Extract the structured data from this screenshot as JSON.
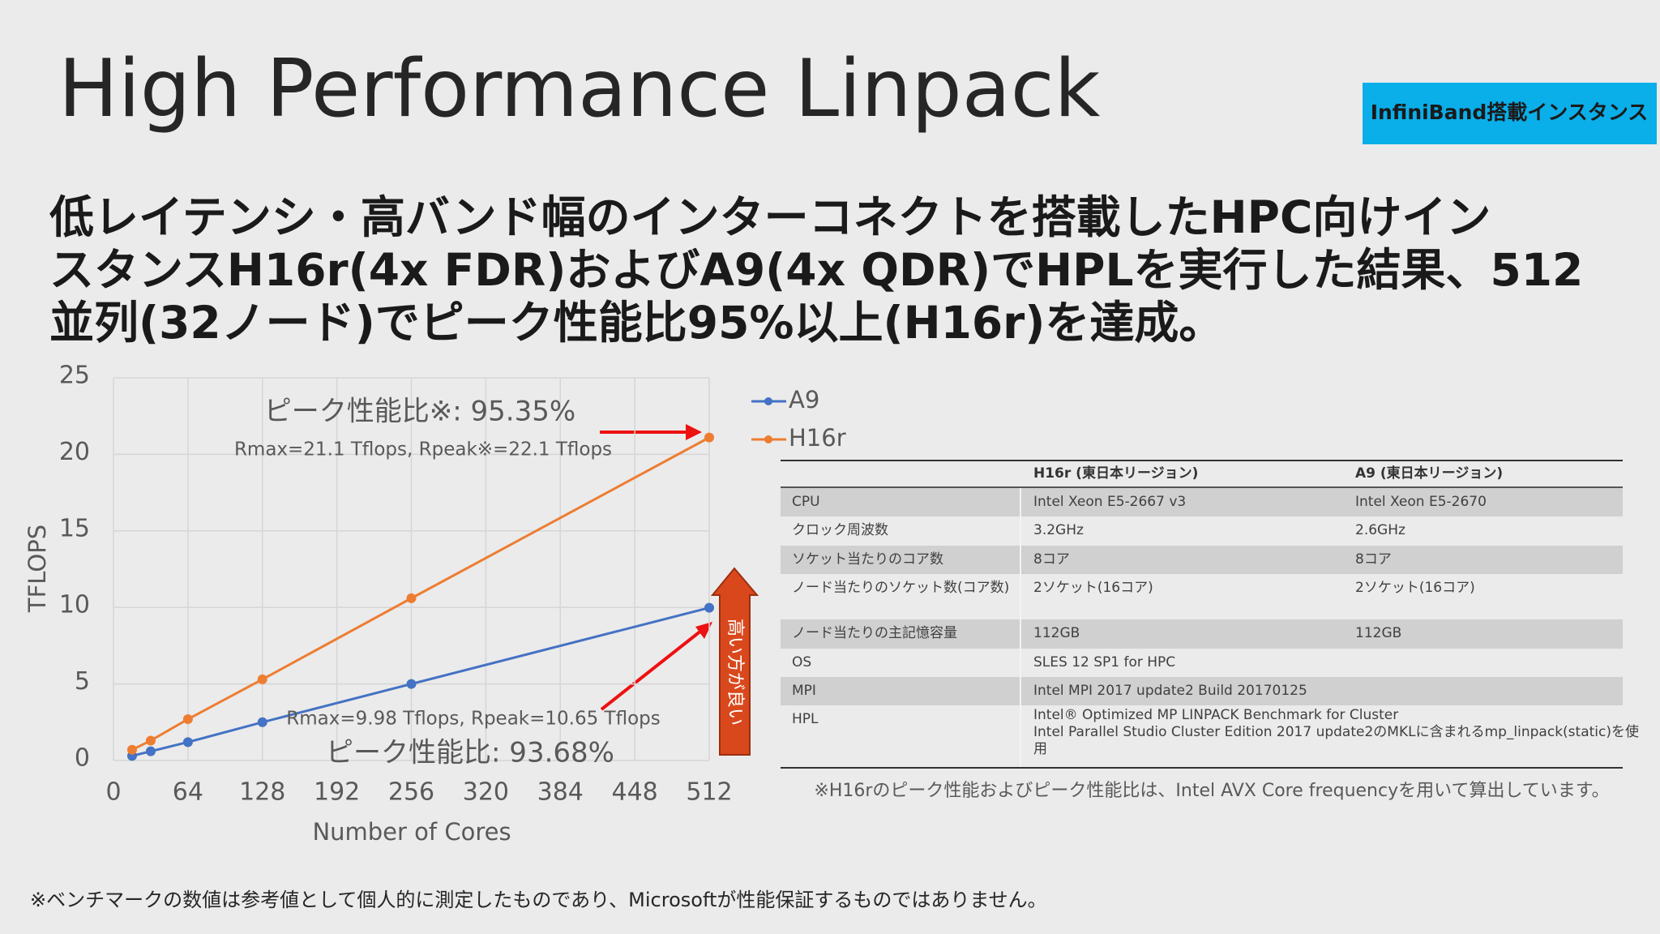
{
  "header": {
    "title": "High Performance Linpack",
    "badge": "InfiniBand搭載インスタンス"
  },
  "description": {
    "lines": [
      "低レイテンシ・高バンド幅のインターコネクトを搭載したHPC向けイン",
      "スタンスH16r(4x FDR)およびA9(4x QDR)でHPLを実行した結果、512",
      "並列(32ノード)でピーク性能比95%以上(H16r)を達成。"
    ]
  },
  "chart_data": {
    "type": "line",
    "x_label": "Number of Cores",
    "y_label": "TFLOPS",
    "x": [
      16,
      32,
      64,
      128,
      256,
      512
    ],
    "series": [
      {
        "name": "A9",
        "color": "#4472c4",
        "values": [
          0.3,
          0.6,
          1.2,
          2.5,
          5.0,
          9.98
        ]
      },
      {
        "name": "H16r",
        "color": "#ed7d31",
        "values": [
          0.7,
          1.3,
          2.7,
          5.3,
          10.6,
          21.1
        ]
      }
    ],
    "xlim": [
      0,
      512
    ],
    "xticks": [
      0,
      64,
      128,
      192,
      256,
      320,
      384,
      448,
      512
    ],
    "ylim": [
      0,
      25
    ],
    "yticks": [
      0,
      5,
      10,
      15,
      20,
      25
    ],
    "grid": true,
    "legend": "right",
    "annotations": [
      "ピーク性能比※: 95.35%",
      "Rmax=21.1 Tflops, Rpeak※=22.1 Tflops",
      "Rmax=9.98 Tflops, Rpeak=10.65 Tflops",
      "ピーク性能比: 93.68%",
      "高い方が良い"
    ]
  },
  "table": {
    "columns": [
      "H16r (東日本リージョン)",
      "A9 (東日本リージョン)"
    ],
    "rows": [
      {
        "label": "CPU",
        "h16r": "Intel Xeon E5-2667 v3",
        "a9": "Intel Xeon E5-2670"
      },
      {
        "label": "クロック周波数",
        "h16r": "3.2GHz",
        "a9": "2.6GHz"
      },
      {
        "label": "ソケット当たりのコア数",
        "h16r": "8コア",
        "a9": "8コア"
      },
      {
        "label": "ノード当たりのソケット数(コア数)",
        "h16r": "2ソケット(16コア)",
        "a9": "2ソケット(16コア)"
      },
      {
        "label": "ノード当たりの主記憶容量",
        "h16r": "112GB",
        "a9": "112GB"
      },
      {
        "label": "OS",
        "h16r": "SLES 12 SP1 for HPC"
      },
      {
        "label": "MPI",
        "h16r": "Intel MPI 2017 update2 Build 20170125"
      },
      {
        "label": "HPL",
        "h16r": [
          "Intel® Optimized MP LINPACK Benchmark for Cluster",
          "Intel Parallel Studio Cluster Edition 2017 update2のMKLに含まれるmp_linpack(static)を使",
          "用"
        ]
      }
    ],
    "note": "※H16rのピーク性能およびピーク性能比は、Intel AVX Core frequencyを用いて算出しています。"
  },
  "footnote": "※ベンチマークの数値は参考値として個人的に測定したものであり、Microsoftが性能保証するものではありません。"
}
